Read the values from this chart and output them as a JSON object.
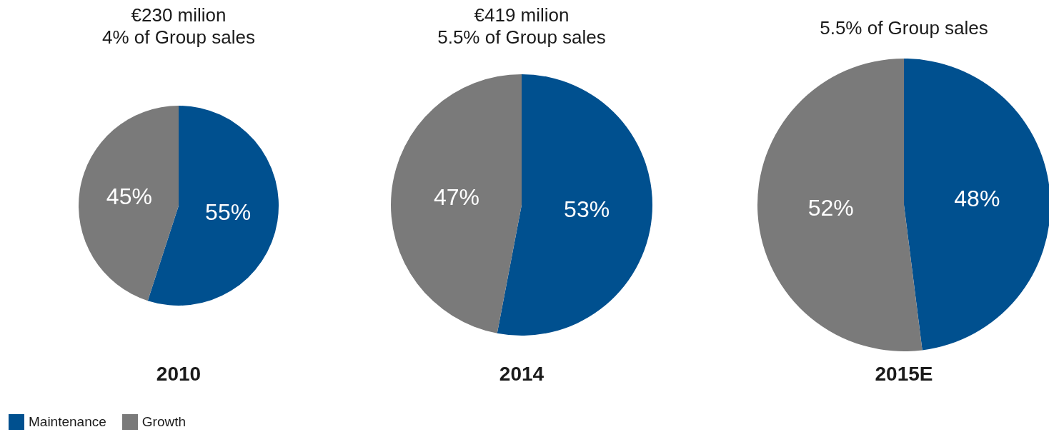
{
  "chart_data": [
    {
      "type": "pie",
      "title": "€230 milion",
      "subtitle": "4% of Group sales",
      "xlabel": "2010",
      "categories": [
        "Maintenance",
        "Growth"
      ],
      "values": [
        55,
        45
      ],
      "colors": [
        "#00508f",
        "#7a7a7a"
      ],
      "value_labels": [
        "55%",
        "45%"
      ],
      "legend": "bottom left"
    },
    {
      "type": "pie",
      "title": "€419 milion",
      "subtitle": "5.5% of Group sales",
      "xlabel": "2014",
      "categories": [
        null,
        null
      ],
      "values": [
        53,
        47
      ],
      "colors": [
        "#00508f",
        "#7a7a7a"
      ],
      "value_labels": [
        "53%",
        "47%"
      ]
    },
    {
      "type": "pie",
      "subtitle": "5.5% of Group sales",
      "xlabel": "2015E",
      "categories": [
        null,
        null
      ],
      "values": [
        48,
        52
      ],
      "colors": [
        "#00508f",
        "#7a7a7a"
      ],
      "value_labels": [
        "48%",
        "52%"
      ]
    }
  ]
}
